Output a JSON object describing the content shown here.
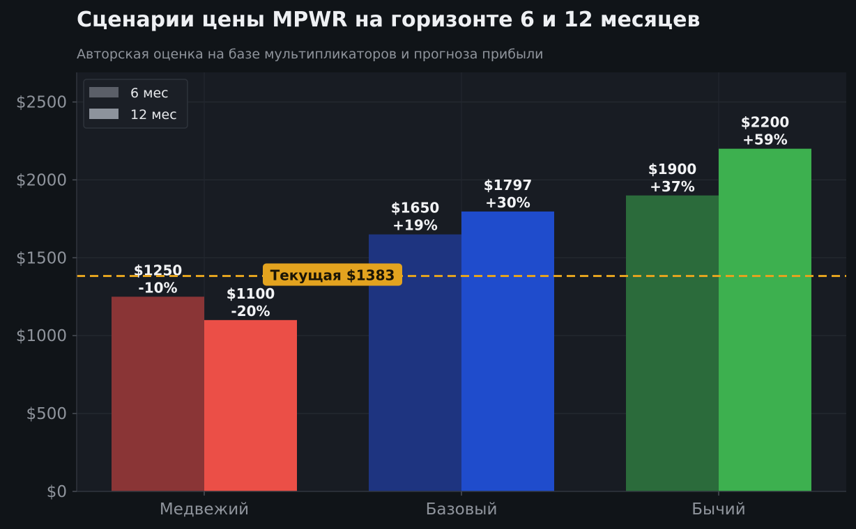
{
  "chart_data": {
    "type": "bar",
    "title": "Сценарии цены MPWR на горизонте 6 и 12 месяцев",
    "subtitle": "Авторская оценка на базе мультипликаторов и прогноза прибыли",
    "categories": [
      "Медвежий",
      "Базовый",
      "Бычий"
    ],
    "series": [
      {
        "name": "6 мес",
        "values": [
          1250,
          1650,
          1900
        ],
        "labels": [
          "$1250",
          "$1650",
          "$1900"
        ],
        "pct": [
          "-10%",
          "+19%",
          "+37%"
        ],
        "colors": [
          "#8a3536",
          "#1e3480",
          "#2b6b3b"
        ]
      },
      {
        "name": "12 мес",
        "values": [
          1100,
          1797,
          2200
        ],
        "labels": [
          "$1100",
          "$1797",
          "$2200"
        ],
        "pct": [
          "-20%",
          "+30%",
          "+59%"
        ],
        "colors": [
          "#eb4f47",
          "#1f4ccc",
          "#3db04f"
        ]
      }
    ],
    "reference_line": {
      "value": 1383,
      "label": "Текущая $1383",
      "color": "#e3a31f"
    },
    "y_ticks": [
      0,
      500,
      1000,
      1500,
      2000,
      2500
    ],
    "y_tick_labels": [
      "$0",
      "$500",
      "$1000",
      "$1500",
      "$2000",
      "$2500"
    ],
    "ylim": [
      0,
      2690
    ],
    "grid": true,
    "legend": {
      "placement": "top-left",
      "items": [
        {
          "label": "6 мес",
          "color": "#5b5f68"
        },
        {
          "label": "12 мес",
          "color": "#8d939c"
        }
      ]
    }
  }
}
